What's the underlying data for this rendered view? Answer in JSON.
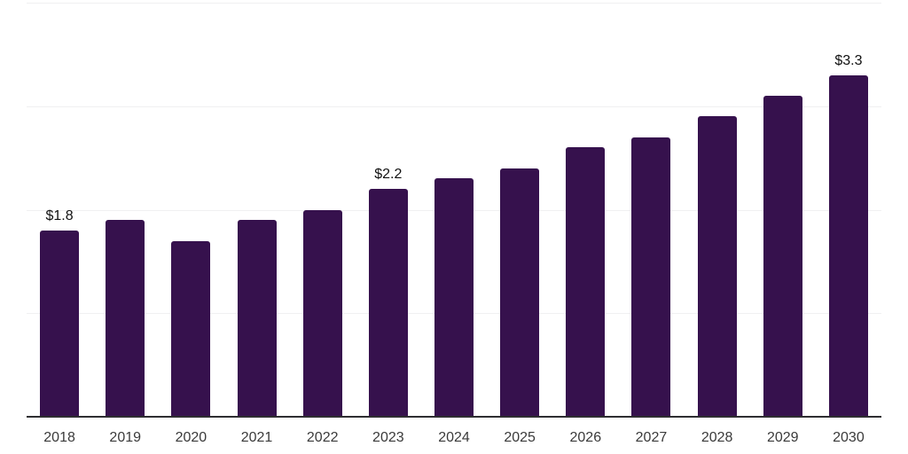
{
  "chart_data": {
    "type": "bar",
    "title": "",
    "categories": [
      "2018",
      "2019",
      "2020",
      "2021",
      "2022",
      "2023",
      "2024",
      "2025",
      "2026",
      "2027",
      "2028",
      "2029",
      "2030"
    ],
    "values": [
      1.8,
      1.9,
      1.7,
      1.9,
      2.0,
      2.2,
      2.3,
      2.4,
      2.6,
      2.7,
      2.9,
      3.1,
      3.3
    ],
    "data_labels": [
      "$1.8",
      null,
      null,
      null,
      null,
      "$2.2",
      null,
      null,
      null,
      null,
      null,
      null,
      "$3.3"
    ],
    "xlabel": "",
    "ylabel": "",
    "ylim": [
      0,
      4
    ],
    "gridline_values": [
      1,
      2,
      3,
      4
    ],
    "grid": true,
    "legend_position": "none",
    "colors": {
      "bar": "#36114d",
      "gridline": "#f0f0f1",
      "axis_line": "#2e2e31",
      "tick_label": "#3a3a3a",
      "data_label": "#111111"
    }
  }
}
